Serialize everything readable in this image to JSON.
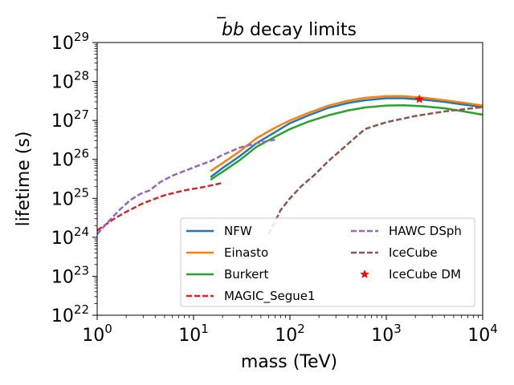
{
  "chart_data": {
    "type": "line",
    "title": "b̄b decay limits",
    "title_prefix": "b",
    "title_bar_letter": "b",
    "title_rest": " decay limits",
    "xlabel": "mass (TeV)",
    "ylabel": "lifetime (s)",
    "xscale": "log",
    "yscale": "log",
    "xlim": [
      1,
      10000
    ],
    "ylim": [
      1e+22,
      1e+29
    ],
    "x_ticks": [
      {
        "value": 1,
        "base": "10",
        "exp": "0"
      },
      {
        "value": 10,
        "base": "10",
        "exp": "1"
      },
      {
        "value": 100,
        "base": "10",
        "exp": "2"
      },
      {
        "value": 1000,
        "base": "10",
        "exp": "3"
      },
      {
        "value": 10000,
        "base": "10",
        "exp": "4"
      }
    ],
    "y_ticks": [
      {
        "value": 1e+22,
        "base": "10",
        "exp": "22"
      },
      {
        "value": 1e+23,
        "base": "10",
        "exp": "23"
      },
      {
        "value": 1e+24,
        "base": "10",
        "exp": "24"
      },
      {
        "value": 1e+25,
        "base": "10",
        "exp": "25"
      },
      {
        "value": 1e+26,
        "base": "10",
        "exp": "26"
      },
      {
        "value": 1e+27,
        "base": "10",
        "exp": "27"
      },
      {
        "value": 1e+28,
        "base": "10",
        "exp": "28"
      },
      {
        "value": 1e+29,
        "base": "10",
        "exp": "29"
      }
    ],
    "legend_position": "lower-right",
    "series": [
      {
        "name": "NFW",
        "color": "#1f77b4",
        "style": "solid",
        "x": [
          15,
          20,
          30,
          45,
          70,
          100,
          150,
          250,
          400,
          600,
          1000,
          1500,
          2500,
          4000,
          6000,
          10000
        ],
        "y": [
          3.5e+25,
          6e+25,
          1.2e+26,
          2.6e+26,
          5e+26,
          8.5e+26,
          1.3e+27,
          2.1e+27,
          2.8e+27,
          3.3e+27,
          3.7e+27,
          3.7e+27,
          3.4e+27,
          3e+27,
          2.6e+27,
          2.2e+27
        ]
      },
      {
        "name": "Einasto",
        "color": "#ff7f0e",
        "style": "solid",
        "x": [
          15,
          20,
          30,
          45,
          70,
          100,
          150,
          250,
          400,
          600,
          1000,
          1500,
          2500,
          4000,
          6000,
          10000
        ],
        "y": [
          5e+25,
          8e+25,
          1.6e+26,
          3.5e+26,
          6.5e+26,
          1e+27,
          1.5e+27,
          2.4e+27,
          3.2e+27,
          3.8e+27,
          4.2e+27,
          4.2e+27,
          3.8e+27,
          3.3e+27,
          2.9e+27,
          2.4e+27
        ]
      },
      {
        "name": "Burkert",
        "color": "#2ca02c",
        "style": "solid",
        "x": [
          15,
          20,
          30,
          45,
          70,
          100,
          150,
          250,
          400,
          600,
          1000,
          1500,
          2500,
          4000,
          6000,
          10000
        ],
        "y": [
          3e+25,
          4.8e+25,
          9.5e+25,
          2.1e+26,
          3.8e+26,
          6e+26,
          9e+26,
          1.35e+27,
          1.8e+27,
          2.15e+27,
          2.4e+27,
          2.45e+27,
          2.3e+27,
          2.05e+27,
          1.75e+27,
          1.4e+27
        ]
      },
      {
        "name": "MAGIC_Segue1",
        "color": "#d62728",
        "style": "dashed",
        "x": [
          1,
          1.5,
          2,
          3,
          5,
          8,
          12,
          16,
          20
        ],
        "y": [
          1.5e+24,
          3e+24,
          4.5e+24,
          7.5e+24,
          1.2e+25,
          1.6e+25,
          1.9e+25,
          2.2e+25,
          2.5e+25
        ]
      },
      {
        "name": "HAWC DSph",
        "color": "#9467bd",
        "style": "dashed",
        "x": [
          1,
          1.3,
          1.7,
          2.2,
          2.8,
          3.5,
          4.5,
          6,
          8,
          11,
          15,
          20,
          30,
          45,
          70
        ],
        "y": [
          1.2e+24,
          2.5e+24,
          5e+24,
          9e+24,
          1.3e+25,
          1.6e+25,
          2.6e+25,
          3.8e+25,
          5e+25,
          6.8e+25,
          9e+25,
          1.3e+26,
          2e+26,
          2.6e+26,
          3.2e+26
        ]
      },
      {
        "name": "IceCube",
        "color": "#8c564b",
        "style": "dashed",
        "x": [
          60,
          70,
          80,
          100,
          130,
          180,
          250,
          400,
          600,
          1000,
          2000,
          4000,
          10000
        ],
        "y": [
          1.2e+24,
          2.5e+24,
          5e+24,
          1e+25,
          2e+25,
          4e+25,
          9e+25,
          2.5e+26,
          6e+26,
          9e+26,
          1.3e+27,
          1.7e+27,
          2.2e+27
        ]
      },
      {
        "name": "IceCube DM",
        "color": "#ff0000",
        "style": "marker",
        "x": [
          2200
        ],
        "y": [
          3.5e+27
        ]
      }
    ]
  }
}
